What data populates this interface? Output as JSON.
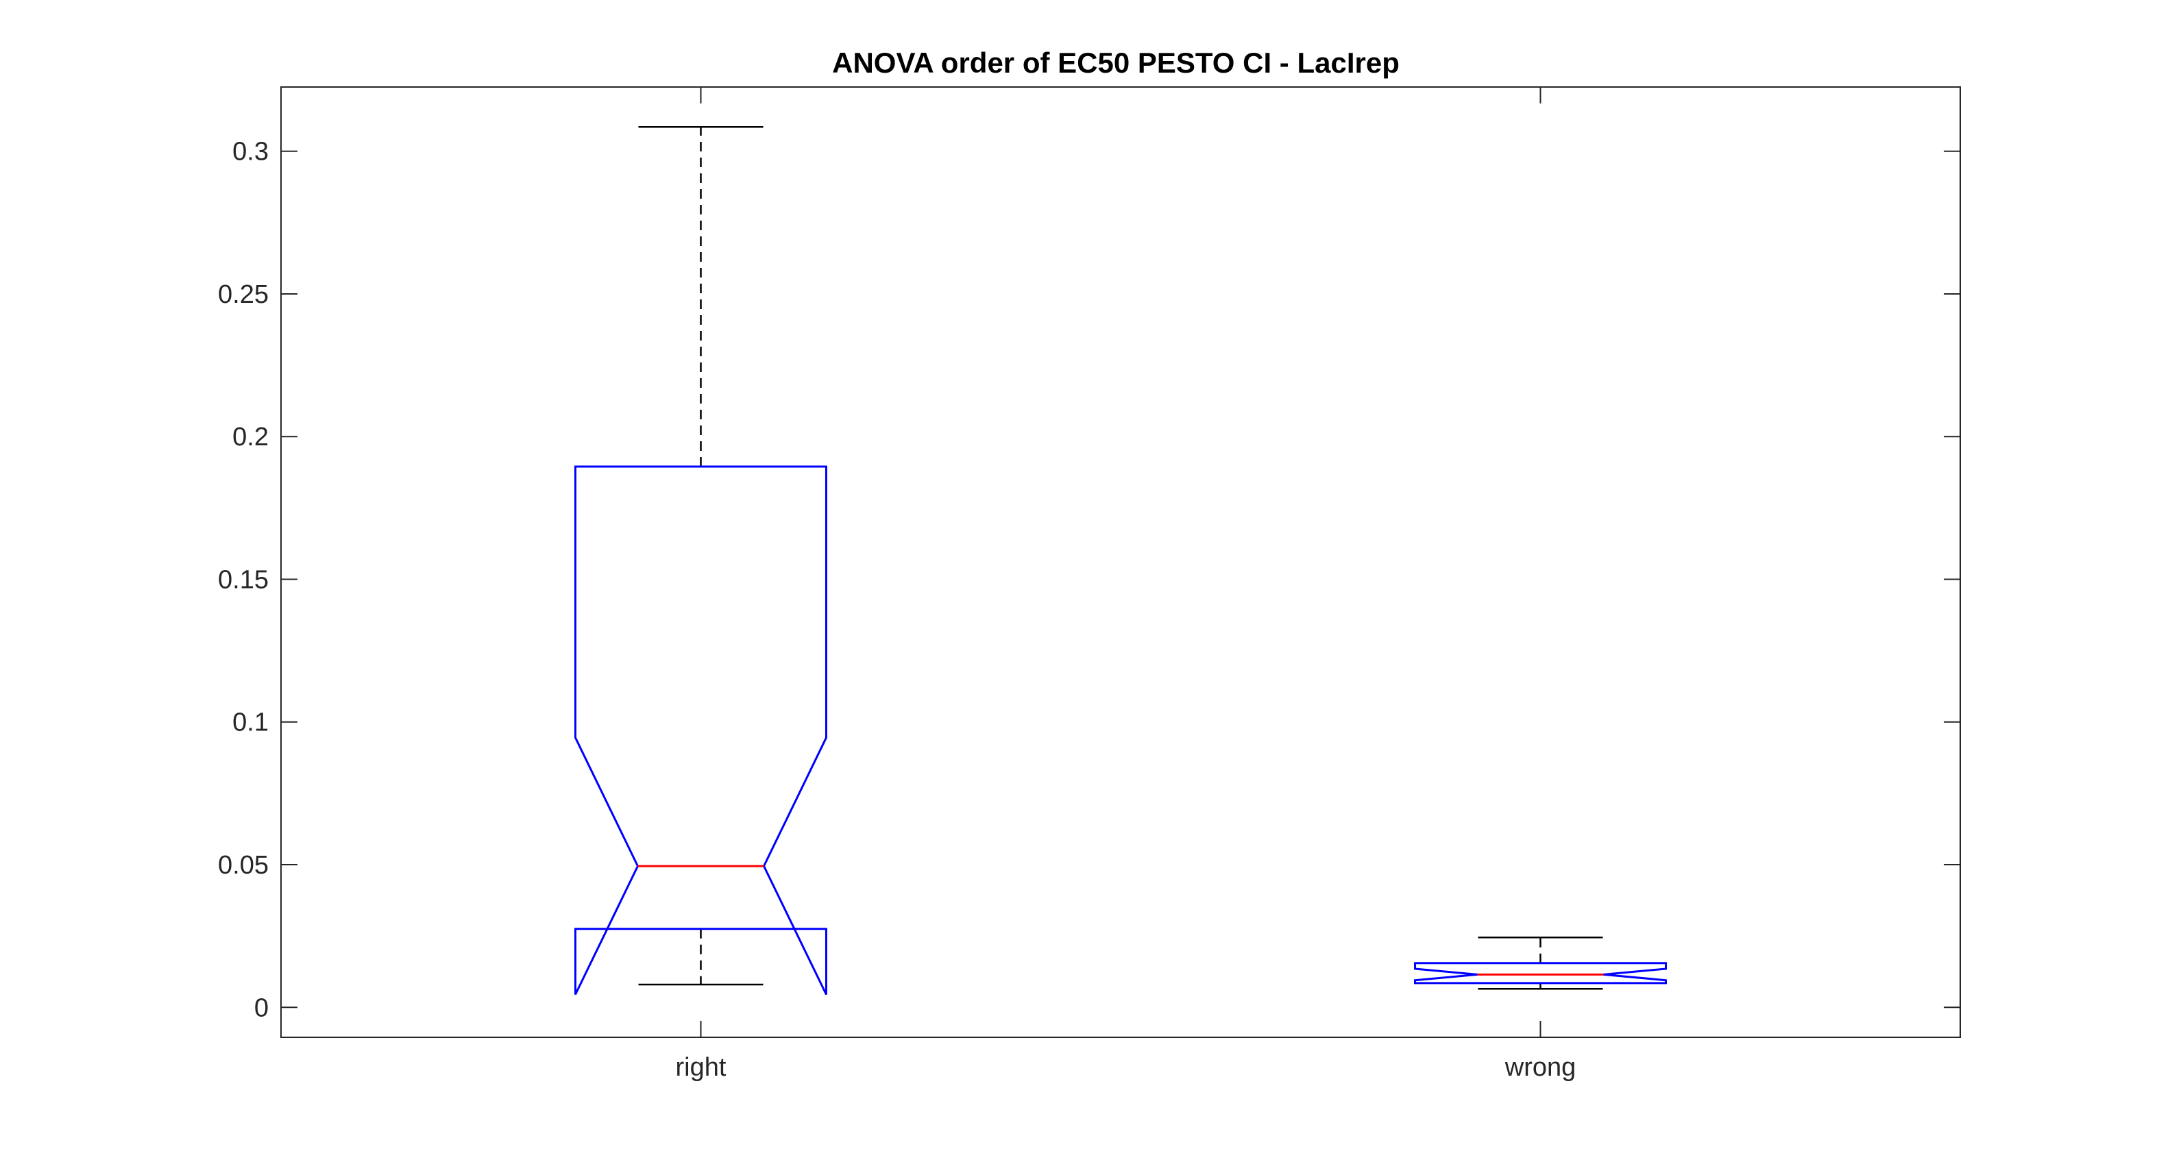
{
  "chart_data": {
    "type": "boxplot",
    "title": "ANOVA order of EC50 PESTO CI - LacIrep",
    "xlabel": "",
    "ylabel": "",
    "ylim": [
      -0.0105,
      0.3225
    ],
    "yticks": [
      0,
      0.05,
      0.1,
      0.15,
      0.2,
      0.25,
      0.3
    ],
    "ytick_labels": [
      "0",
      "0.05",
      "0.1",
      "0.15",
      "0.2",
      "0.25",
      "0.3"
    ],
    "categories": [
      "right",
      "wrong"
    ],
    "notched": true,
    "grid": false,
    "boxes": [
      {
        "category": "right",
        "whisker_low": 0.008,
        "q1": 0.0275,
        "median": 0.0495,
        "q3": 0.1895,
        "whisker_high": 0.3085,
        "notch_low": 0.0045,
        "notch_high": 0.0945
      },
      {
        "category": "wrong",
        "whisker_low": 0.0065,
        "q1": 0.0085,
        "median": 0.0115,
        "q3": 0.0155,
        "whisker_high": 0.0245,
        "notch_low": 0.0095,
        "notch_high": 0.0135
      }
    ],
    "colors": {
      "box": "#0000ff",
      "median": "#ff0000",
      "whisker": "#000000",
      "axes": "#262626"
    }
  }
}
